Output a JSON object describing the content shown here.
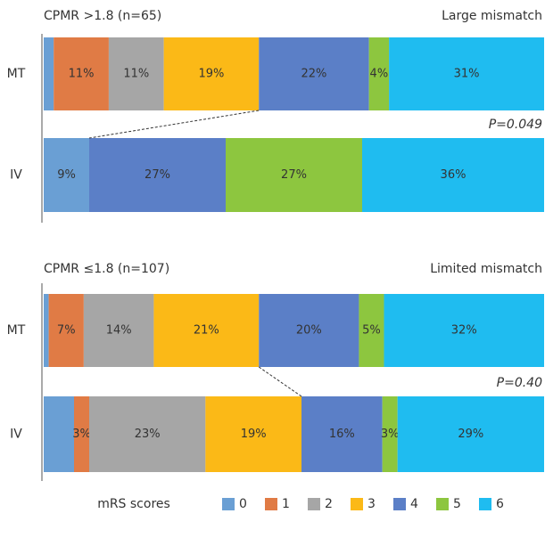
{
  "legend_title": "mRS scores",
  "chart_data": [
    {
      "type": "stacked-bar-horizontal",
      "title": "CPMR >1.8 (n=65)",
      "subtitle": "Large mismatch",
      "annotation": "P=0.049",
      "categories": [
        "MT",
        "IV"
      ],
      "series": [
        {
          "name": "0",
          "color": "#6a9fd4",
          "values": [
            2,
            9
          ],
          "value_labels": [
            null,
            "9%"
          ]
        },
        {
          "name": "1",
          "color": "#e07b45",
          "values": [
            11,
            0
          ],
          "value_labels": [
            "11%",
            null
          ]
        },
        {
          "name": "2",
          "color": "#a6a6a6",
          "values": [
            11,
            0
          ],
          "value_labels": [
            "11%",
            null
          ]
        },
        {
          "name": "3",
          "color": "#fbb917",
          "values": [
            19,
            0
          ],
          "value_labels": [
            "19%",
            null
          ]
        },
        {
          "name": "4",
          "color": "#5b7fc7",
          "values": [
            22,
            27
          ],
          "value_labels": [
            "22%",
            "27%"
          ]
        },
        {
          "name": "5",
          "color": "#8dc63f",
          "values": [
            4,
            27
          ],
          "value_labels": [
            "4%",
            "27%"
          ]
        },
        {
          "name": "6",
          "color": "#1fbcf0",
          "values": [
            31,
            36
          ],
          "value_labels": [
            "31%",
            "36%"
          ]
        }
      ]
    },
    {
      "type": "stacked-bar-horizontal",
      "title": "CPMR ≤1.8 (n=107)",
      "subtitle": "Limited mismatch",
      "annotation": "P=0.40",
      "categories": [
        "MT",
        "IV"
      ],
      "series": [
        {
          "name": "0",
          "color": "#6a9fd4",
          "values": [
            1,
            6
          ],
          "value_labels": [
            null,
            null
          ]
        },
        {
          "name": "1",
          "color": "#e07b45",
          "values": [
            7,
            3
          ],
          "value_labels": [
            "7%",
            "3%"
          ]
        },
        {
          "name": "2",
          "color": "#a6a6a6",
          "values": [
            14,
            23
          ],
          "value_labels": [
            "14%",
            "23%"
          ]
        },
        {
          "name": "3",
          "color": "#fbb917",
          "values": [
            21,
            19
          ],
          "value_labels": [
            "21%",
            "19%"
          ]
        },
        {
          "name": "4",
          "color": "#5b7fc7",
          "values": [
            20,
            16
          ],
          "value_labels": [
            "20%",
            "16%"
          ]
        },
        {
          "name": "5",
          "color": "#8dc63f",
          "values": [
            5,
            3
          ],
          "value_labels": [
            "5%",
            "3%"
          ]
        },
        {
          "name": "6",
          "color": "#1fbcf0",
          "values": [
            32,
            29
          ],
          "value_labels": [
            "32%",
            "29%"
          ]
        }
      ]
    }
  ]
}
